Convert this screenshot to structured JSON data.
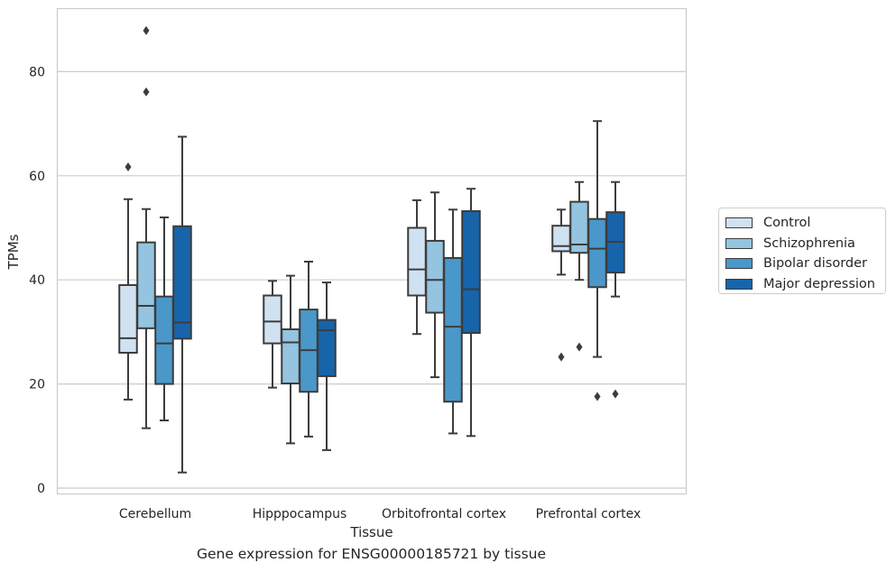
{
  "chart_data": {
    "type": "box",
    "xlabel": "Tissue",
    "ylabel": "TPMs",
    "caption": "Gene expression for ENSG00000185721 by tissue",
    "ylim": [
      -1,
      92
    ],
    "yticks": [
      0,
      20,
      40,
      60,
      80
    ],
    "grid": true,
    "legend_position": "right-outside",
    "categories": [
      "Cerebellum",
      "Hipppocampus",
      "Orbitofrontal cortex",
      "Prefrontal cortex"
    ],
    "series": [
      {
        "name": "Control",
        "color": "#d0e1f2",
        "boxes": [
          {
            "whislo": 17,
            "q1": 26,
            "med": 28.8,
            "q3": 39,
            "whishi": 55.5,
            "fliers": [
              61.7
            ]
          },
          {
            "whislo": 19.3,
            "q1": 27.8,
            "med": 32,
            "q3": 37,
            "whishi": 39.8,
            "fliers": []
          },
          {
            "whislo": 29.6,
            "q1": 37,
            "med": 42,
            "q3": 50,
            "whishi": 55.3,
            "fliers": []
          },
          {
            "whislo": 41,
            "q1": 45.5,
            "med": 46.5,
            "q3": 50.4,
            "whishi": 53.5,
            "fliers": [
              25.2
            ]
          }
        ]
      },
      {
        "name": "Schizophrenia",
        "color": "#94c4df",
        "boxes": [
          {
            "whislo": 11.5,
            "q1": 30.7,
            "med": 35,
            "q3": 47.2,
            "whishi": 53.6,
            "fliers": [
              76.1,
              87.9
            ]
          },
          {
            "whislo": 8.6,
            "q1": 20.1,
            "med": 28,
            "q3": 30.5,
            "whishi": 40.8,
            "fliers": []
          },
          {
            "whislo": 21.3,
            "q1": 33.7,
            "med": 40,
            "q3": 47.5,
            "whishi": 56.8,
            "fliers": []
          },
          {
            "whislo": 40,
            "q1": 45.2,
            "med": 46.8,
            "q3": 55,
            "whishi": 58.8,
            "fliers": [
              27.1
            ]
          }
        ]
      },
      {
        "name": "Bipolar disorder",
        "color": "#4a98c9",
        "boxes": [
          {
            "whislo": 13,
            "q1": 20,
            "med": 27.8,
            "q3": 36.8,
            "whishi": 52,
            "fliers": []
          },
          {
            "whislo": 9.9,
            "q1": 18.5,
            "med": 26.5,
            "q3": 34.3,
            "whishi": 43.5,
            "fliers": []
          },
          {
            "whislo": 10.5,
            "q1": 16.6,
            "med": 31,
            "q3": 44.2,
            "whishi": 53.5,
            "fliers": []
          },
          {
            "whislo": 25.2,
            "q1": 38.6,
            "med": 46,
            "q3": 51.7,
            "whishi": 70.5,
            "fliers": [
              17.6
            ]
          }
        ]
      },
      {
        "name": "Major depression",
        "color": "#1764ab",
        "boxes": [
          {
            "whislo": 3,
            "q1": 28.7,
            "med": 31.8,
            "q3": 50.3,
            "whishi": 67.5,
            "fliers": []
          },
          {
            "whislo": 7.3,
            "q1": 21.5,
            "med": 30.3,
            "q3": 32.3,
            "whishi": 39.5,
            "fliers": []
          },
          {
            "whislo": 10,
            "q1": 29.8,
            "med": 38.2,
            "q3": 53.2,
            "whishi": 57.5,
            "fliers": []
          },
          {
            "whislo": 36.8,
            "q1": 41.4,
            "med": 47.3,
            "q3": 53,
            "whishi": 58.8,
            "fliers": [
              18.1
            ]
          }
        ]
      }
    ]
  }
}
